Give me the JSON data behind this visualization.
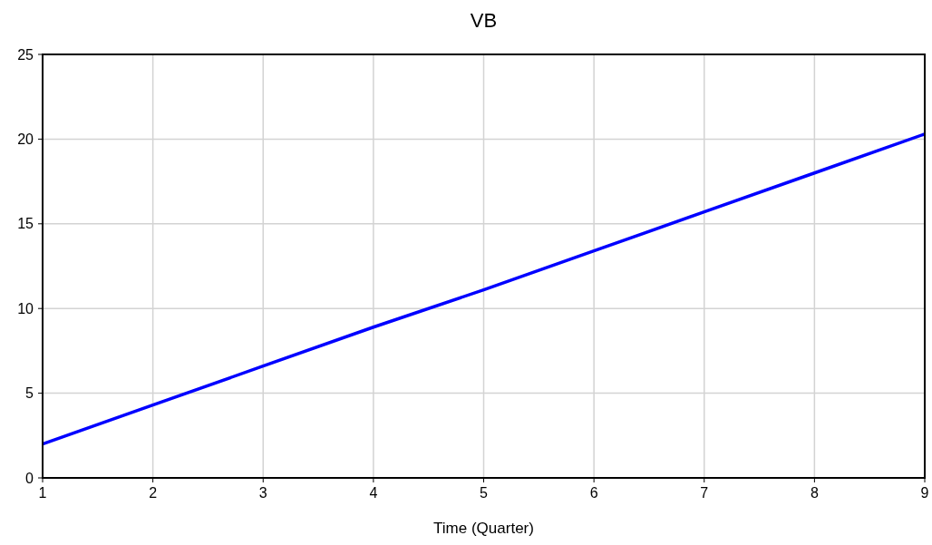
{
  "chart_data": {
    "type": "line",
    "title": "VB",
    "xlabel": "Time (Quarter)",
    "x": [
      1,
      2,
      3,
      4,
      5,
      6,
      7,
      8,
      9
    ],
    "series": [
      {
        "color": "#0000ff",
        "values": [
          2,
          4.3,
          6.6,
          8.9,
          11.1,
          13.4,
          15.7,
          18.0,
          20.3
        ]
      }
    ],
    "xlim": [
      1,
      9
    ],
    "xticks": [
      1,
      2,
      3,
      4,
      5,
      6,
      7,
      8,
      9
    ],
    "ylim": [
      0,
      25
    ],
    "yticks": [
      0,
      5,
      10,
      15,
      20,
      25
    ],
    "grid": true,
    "line_style": "solid"
  }
}
